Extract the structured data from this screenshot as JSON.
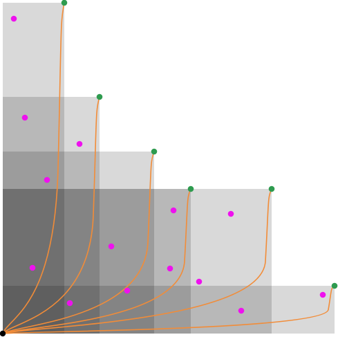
{
  "diagram": {
    "rect_fill": "#000000",
    "rect_opacity": 0.15,
    "curve_color": "#f28c38",
    "endpoint_color": "#2e9b4f",
    "origin_color": "#000000",
    "point_color": "#ee11ee"
  }
}
